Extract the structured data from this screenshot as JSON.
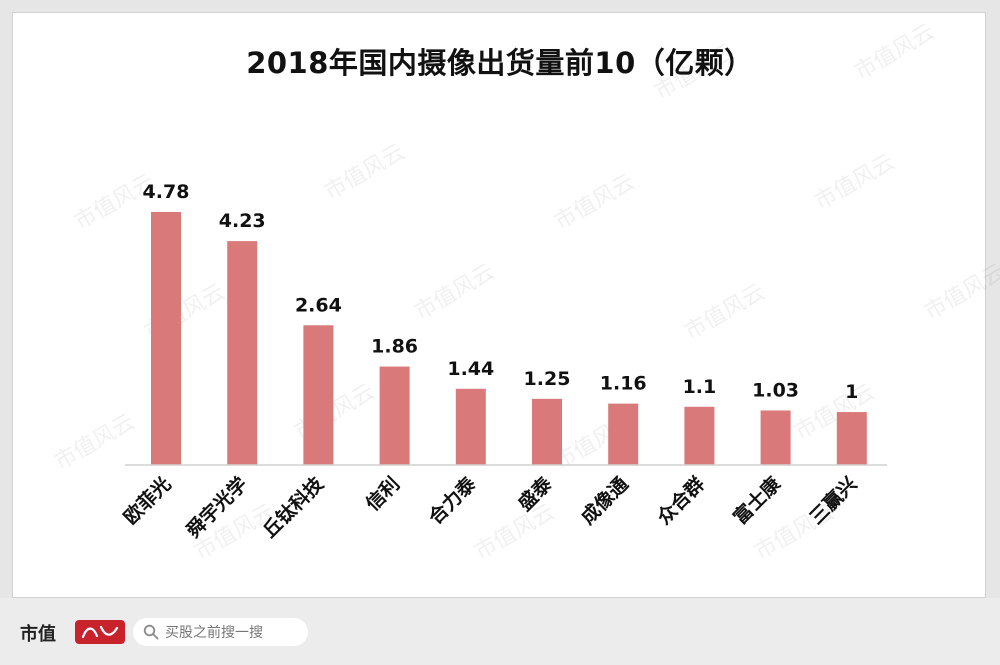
{
  "chart_data": {
    "type": "bar",
    "title": "2018年国内摄像出货量前10（亿颗）",
    "categories": [
      "欧菲光",
      "舜宇光学",
      "丘钛科技",
      "信利",
      "合力泰",
      "盛泰",
      "成像通",
      "众合群",
      "富士康",
      "三赢兴"
    ],
    "values": [
      4.78,
      4.23,
      2.64,
      1.86,
      1.44,
      1.25,
      1.16,
      1.1,
      1.03,
      1
    ],
    "value_labels": [
      "4.78",
      "4.23",
      "2.64",
      "1.86",
      "1.44",
      "1.25",
      "1.16",
      "1.1",
      "1.03",
      "1"
    ],
    "bar_color": "#d9797a",
    "ylim": [
      0,
      4.78
    ],
    "grid": false,
    "legend": "none"
  },
  "footer": {
    "brand_text": "市值",
    "brand_seal_text": "风云",
    "search_placeholder": "买股之前搜一搜"
  },
  "watermark_text": "市值风云"
}
